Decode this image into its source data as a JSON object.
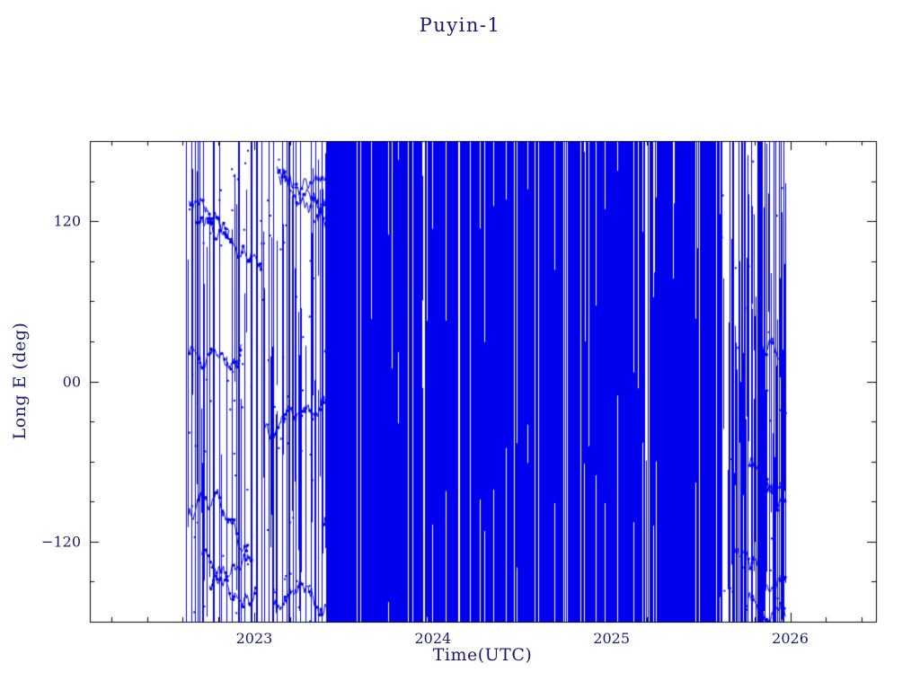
{
  "figure": {
    "background": "#ffffff",
    "text_color": "#1a1a70",
    "frame_color": "#000000"
  },
  "chart_data": {
    "type": "scatter",
    "title": "Puyin-1",
    "xlabel": "Time(UTC)",
    "ylabel": "Long E (deg)",
    "xlim": [
      2022.08,
      2026.48
    ],
    "ylim": [
      -180,
      180
    ],
    "grid": false,
    "legend": false,
    "x_major_ticks": [
      2023,
      2024,
      2025,
      2026
    ],
    "x_major_tick_labels": [
      "2023",
      "2024",
      "2025",
      "2026"
    ],
    "x_minor_tick_step": 0.2,
    "y_major_ticks": [
      120,
      0,
      -120
    ],
    "y_major_tick_labels": [
      "120",
      "00",
      "−120"
    ],
    "y_minor_tick_step": 30,
    "series": [
      {
        "name": "sub-satellite-longitude-track",
        "marker_color": "#0000ee",
        "marker": "small-square-and-line",
        "data_start": 2022.62,
        "data_end": 2025.97,
        "y_coverage": [
          -180,
          180
        ],
        "description": "Longitude ground-track sweeps the full -180..180 deg range, plotted so densely that columns of points merge into near-solid blue vertical bands.",
        "density_segments": [
          {
            "x_start": 2022.62,
            "x_end": 2023.4,
            "fill_probability": 0.55,
            "texture": "tracks"
          },
          {
            "x_start": 2023.4,
            "x_end": 2025.6,
            "fill_probability": 0.97,
            "texture": "solid"
          },
          {
            "x_start": 2025.6,
            "x_end": 2025.97,
            "fill_probability": 0.8,
            "texture": "tracks"
          }
        ]
      }
    ]
  }
}
